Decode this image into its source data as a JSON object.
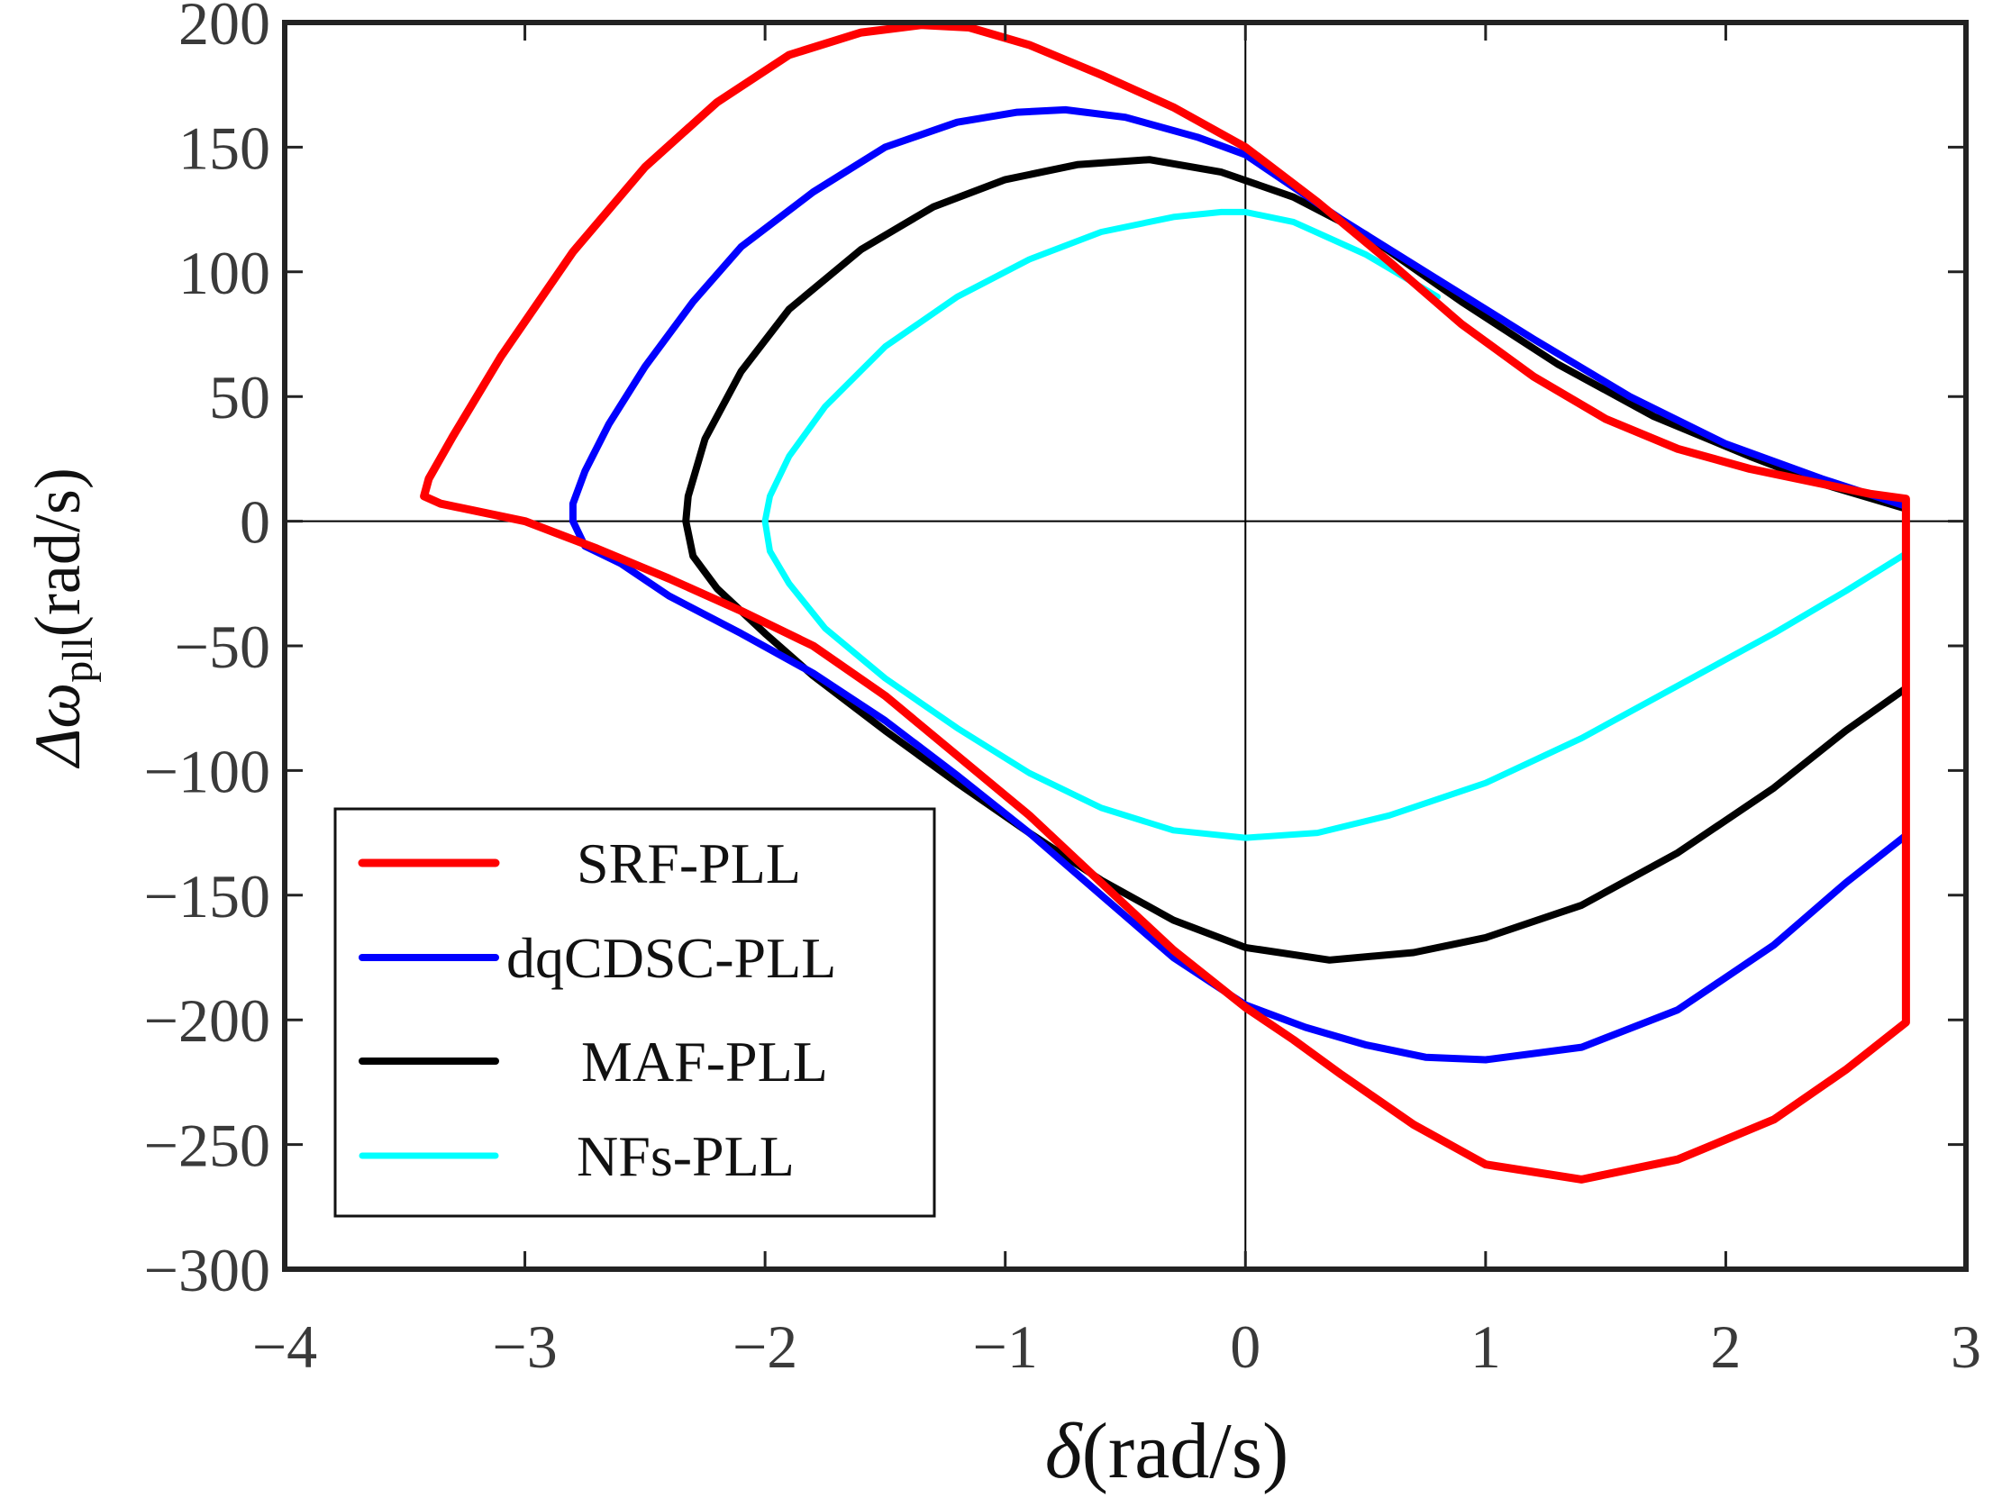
{
  "chart_data": {
    "type": "line",
    "title": "",
    "xlabel": {
      "symbol": "δ",
      "unit": "(rad/s)"
    },
    "ylabel": {
      "prefix": "Δω",
      "subscript": "pll",
      "unit": "(rad/s)"
    },
    "xlim": [
      -4,
      3
    ],
    "ylim": [
      -300,
      200
    ],
    "xticks": [
      -4,
      -3,
      -2,
      -1,
      0,
      1,
      2,
      3
    ],
    "yticks": [
      -300,
      -250,
      -200,
      -150,
      -100,
      -50,
      0,
      50,
      100,
      150,
      200
    ],
    "xtick_labels": [
      "−4",
      "−3",
      "−2",
      "−1",
      "0",
      "1",
      "2",
      "3"
    ],
    "ytick_labels": [
      "−300",
      "−250",
      "−200",
      "−150",
      "−100",
      "−50",
      "0",
      "50",
      "100",
      "150",
      "200"
    ],
    "grid": false,
    "reference_lines": {
      "x": 0,
      "y": 0
    },
    "legend": {
      "position": "bottom-left"
    },
    "series": [
      {
        "name": "SRF-PLL",
        "color": "#ff0000",
        "x": [
          2.75,
          2.5,
          2.2,
          1.8,
          1.4,
          1.0,
          0.7,
          0.4,
          0.2,
          0.0,
          -0.3,
          -0.6,
          -0.9,
          -1.2,
          -1.5,
          -1.8,
          -2.1,
          -2.4,
          -2.7,
          -3.0,
          -3.2,
          -3.35,
          -3.42,
          -3.4,
          -3.3,
          -3.1,
          -2.8,
          -2.5,
          -2.2,
          -1.9,
          -1.6,
          -1.35,
          -1.15,
          -0.9,
          -0.6,
          -0.3,
          0.0,
          0.3,
          0.6,
          0.9,
          1.2,
          1.5,
          1.8,
          2.1,
          2.4,
          2.6,
          2.75,
          2.75
        ],
        "y": [
          -201,
          -220,
          -240,
          -256,
          -264,
          -258,
          -242,
          -222,
          -208,
          -195,
          -172,
          -145,
          -118,
          -94,
          -70,
          -50,
          -36,
          -23,
          -11,
          0,
          4,
          7,
          10,
          17,
          34,
          66,
          108,
          142,
          168,
          187,
          196,
          199,
          198,
          191,
          179,
          166,
          150,
          128,
          104,
          79,
          58,
          41,
          29,
          21,
          15,
          11,
          9,
          -201
        ]
      },
      {
        "name": "dqCDSC-PLL",
        "color": "#0000ff",
        "x": [
          2.75,
          2.5,
          2.2,
          1.8,
          1.4,
          1.0,
          0.75,
          0.5,
          0.25,
          0.0,
          -0.3,
          -0.6,
          -0.9,
          -1.2,
          -1.5,
          -1.8,
          -2.1,
          -2.4,
          -2.6,
          -2.75,
          -2.8,
          -2.8,
          -2.75,
          -2.65,
          -2.5,
          -2.3,
          -2.1,
          -1.8,
          -1.5,
          -1.2,
          -0.95,
          -0.75,
          -0.5,
          -0.2,
          0.0,
          0.4,
          0.8,
          1.2,
          1.6,
          2.0,
          2.4,
          2.75
        ],
        "y": [
          -126,
          -145,
          -170,
          -196,
          -211,
          -216,
          -215,
          -210,
          -203,
          -194,
          -175,
          -150,
          -125,
          -102,
          -80,
          -61,
          -45,
          -30,
          -17,
          -10,
          0,
          7,
          20,
          39,
          62,
          88,
          110,
          132,
          150,
          160,
          164,
          165,
          162,
          154,
          147,
          121,
          97,
          73,
          50,
          31,
          17,
          6
        ]
      },
      {
        "name": "MAF-PLL",
        "color": "#000000",
        "x": [
          2.75,
          2.5,
          2.2,
          1.8,
          1.4,
          1.0,
          0.7,
          0.35,
          0.0,
          -0.3,
          -0.6,
          -0.9,
          -1.2,
          -1.5,
          -1.8,
          -2.0,
          -2.2,
          -2.3,
          -2.33,
          -2.32,
          -2.25,
          -2.1,
          -1.9,
          -1.6,
          -1.3,
          -1.0,
          -0.7,
          -0.4,
          -0.1,
          0.2,
          0.5,
          0.9,
          1.3,
          1.7,
          2.1,
          2.4,
          2.75
        ],
        "y": [
          -67,
          -84,
          -107,
          -133,
          -154,
          -167,
          -173,
          -176,
          -171,
          -160,
          -144,
          -125,
          -105,
          -84,
          -62,
          -45,
          -27,
          -14,
          0,
          10,
          33,
          60,
          85,
          109,
          126,
          137,
          143,
          145,
          140,
          130,
          115,
          88,
          63,
          42,
          26,
          15,
          5
        ]
      },
      {
        "name": "NFs-PLL",
        "color": "#00ffff",
        "x": [
          2.75,
          2.5,
          2.2,
          1.8,
          1.4,
          1.0,
          0.6,
          0.3,
          0.0,
          -0.3,
          -0.6,
          -0.9,
          -1.2,
          -1.5,
          -1.75,
          -1.9,
          -1.98,
          -2.0,
          -1.98,
          -1.9,
          -1.75,
          -1.5,
          -1.2,
          -0.9,
          -0.6,
          -0.3,
          -0.1,
          0.0,
          0.2,
          0.5,
          0.8
        ],
        "y": [
          -13,
          -28,
          -45,
          -66,
          -87,
          -105,
          -118,
          -125,
          -127,
          -124,
          -115,
          -101,
          -83,
          -63,
          -43,
          -25,
          -12,
          0,
          10,
          26,
          46,
          70,
          90,
          105,
          116,
          122,
          124,
          124,
          120,
          107,
          90
        ]
      }
    ]
  }
}
